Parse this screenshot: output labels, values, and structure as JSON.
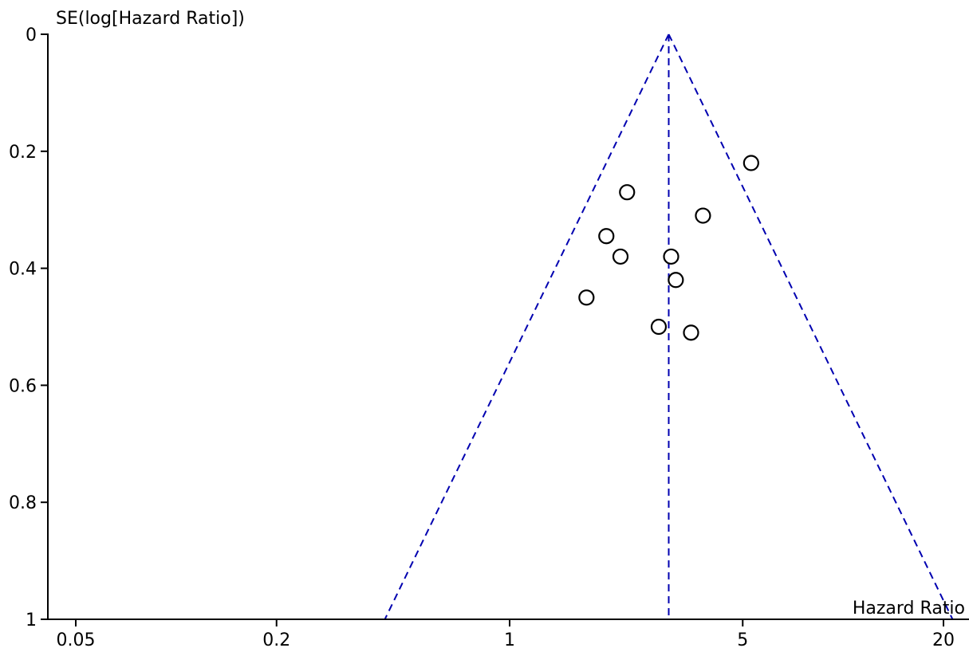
{
  "chart_data": {
    "type": "scatter",
    "subtype": "funnel-plot",
    "xlabel": "Hazard Ratio",
    "ylabel": "SE(log[Hazard Ratio])",
    "x_scale": "log",
    "y_reversed": true,
    "xlim": [
      0.04,
      22
    ],
    "ylim": [
      0,
      1
    ],
    "x_ticks": [
      {
        "value": 0.05,
        "label": "0.05"
      },
      {
        "value": 0.2,
        "label": "0.2"
      },
      {
        "value": 1,
        "label": "1"
      },
      {
        "value": 5,
        "label": "5"
      },
      {
        "value": 20,
        "label": "20"
      }
    ],
    "y_ticks": [
      {
        "value": 0,
        "label": "0"
      },
      {
        "value": 0.2,
        "label": "0.2"
      },
      {
        "value": 0.4,
        "label": "0.4"
      },
      {
        "value": 0.6,
        "label": "0.6"
      },
      {
        "value": 0.8,
        "label": "0.8"
      },
      {
        "value": 1,
        "label": "1"
      }
    ],
    "pooled_estimate": 3.0,
    "funnel_z": 1.96,
    "points": [
      {
        "x": 5.3,
        "y": 0.22
      },
      {
        "x": 2.25,
        "y": 0.27
      },
      {
        "x": 3.8,
        "y": 0.31
      },
      {
        "x": 1.95,
        "y": 0.345
      },
      {
        "x": 2.15,
        "y": 0.38
      },
      {
        "x": 3.05,
        "y": 0.38
      },
      {
        "x": 3.15,
        "y": 0.42
      },
      {
        "x": 1.7,
        "y": 0.45
      },
      {
        "x": 2.8,
        "y": 0.5
      },
      {
        "x": 3.5,
        "y": 0.51
      }
    ],
    "grid": false,
    "legend": "none",
    "colors": {
      "funnel": "#0000b0",
      "points": "#000000",
      "background": "#ffffff"
    }
  }
}
